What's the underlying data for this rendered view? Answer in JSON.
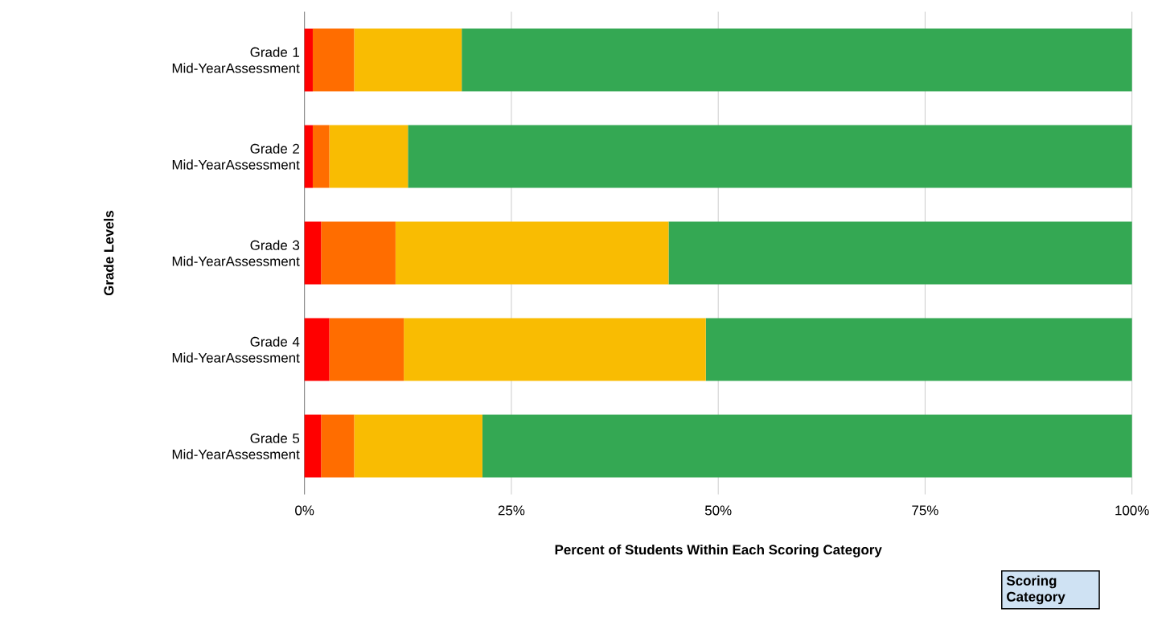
{
  "chart_data": {
    "type": "bar",
    "orientation": "horizontal",
    "stacked": true,
    "categories": [
      "Grade 1 Mid-YearAssessment",
      "Grade 2 Mid-YearAssessment",
      "Grade 3 Mid-YearAssessment",
      "Grade 4 Mid-YearAssessment",
      "Grade 5 Mid-YearAssessment"
    ],
    "series": [
      {
        "color": "#ff0000",
        "values": [
          1,
          1,
          2,
          3,
          2
        ]
      },
      {
        "color": "#ff6d00",
        "values": [
          5,
          2,
          9,
          9,
          4
        ]
      },
      {
        "color": "#f9bc02",
        "values": [
          13,
          9.5,
          33,
          36.5,
          15.5
        ]
      },
      {
        "color": "#34a853",
        "values": [
          81,
          87.5,
          56,
          51.5,
          78.5
        ]
      }
    ],
    "xlim": [
      0,
      100
    ],
    "xticks": [
      {
        "value": 0,
        "label": "0%"
      },
      {
        "value": 25,
        "label": "25%"
      },
      {
        "value": 50,
        "label": "50%"
      },
      {
        "value": 75,
        "label": "75%"
      },
      {
        "value": 100,
        "label": "100%"
      }
    ],
    "xlabel": "Percent of Students Within Each Scoring Category",
    "ylabel": "Grade Levels",
    "legend_title": "Scoring Category",
    "grid": "x"
  }
}
